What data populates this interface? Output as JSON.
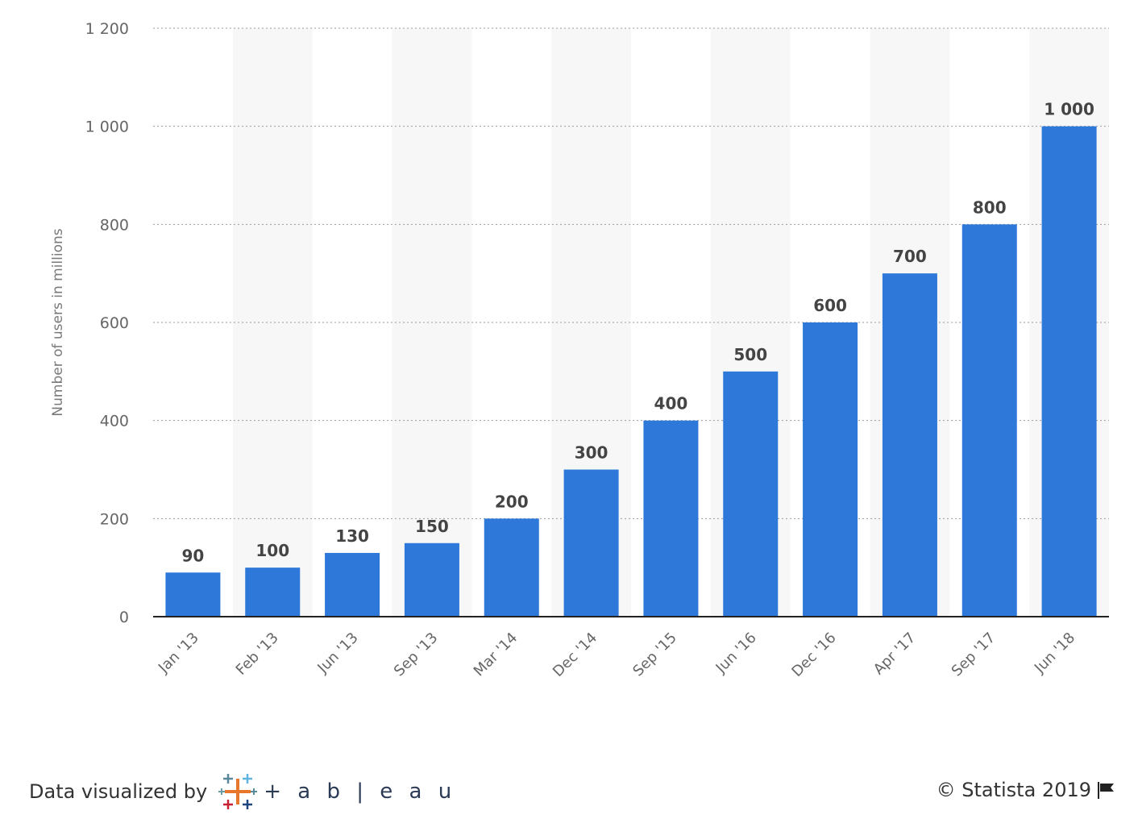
{
  "chart_data": {
    "type": "bar",
    "categories": [
      "Jan '13",
      "Feb '13",
      "Jun '13",
      "Sep '13",
      "Mar '14",
      "Dec '14",
      "Sep '15",
      "Jun '16",
      "Dec '16",
      "Apr '17",
      "Sep '17",
      "Jun '18"
    ],
    "values": [
      90,
      100,
      130,
      150,
      200,
      300,
      400,
      500,
      600,
      700,
      800,
      1000
    ],
    "data_labels": [
      "90",
      "100",
      "130",
      "150",
      "200",
      "300",
      "400",
      "500",
      "600",
      "700",
      "800",
      "1 000"
    ],
    "ylabel": "Number of users in millions",
    "ylim": [
      0,
      1200
    ],
    "yticks": [
      0,
      200,
      400,
      600,
      800,
      1000,
      1200
    ],
    "ytick_labels": [
      "0",
      "200",
      "400",
      "600",
      "800",
      "1 000",
      "1 200"
    ],
    "grid": "horizontal dotted",
    "bar_color": "#2d78d8",
    "band_color": "#f7f7f7"
  },
  "footer": {
    "visualized_by": "Data visualized by",
    "brand": "+ a b | e a u",
    "credit": "© Statista 2019",
    "flag_icon": "flag-icon"
  }
}
